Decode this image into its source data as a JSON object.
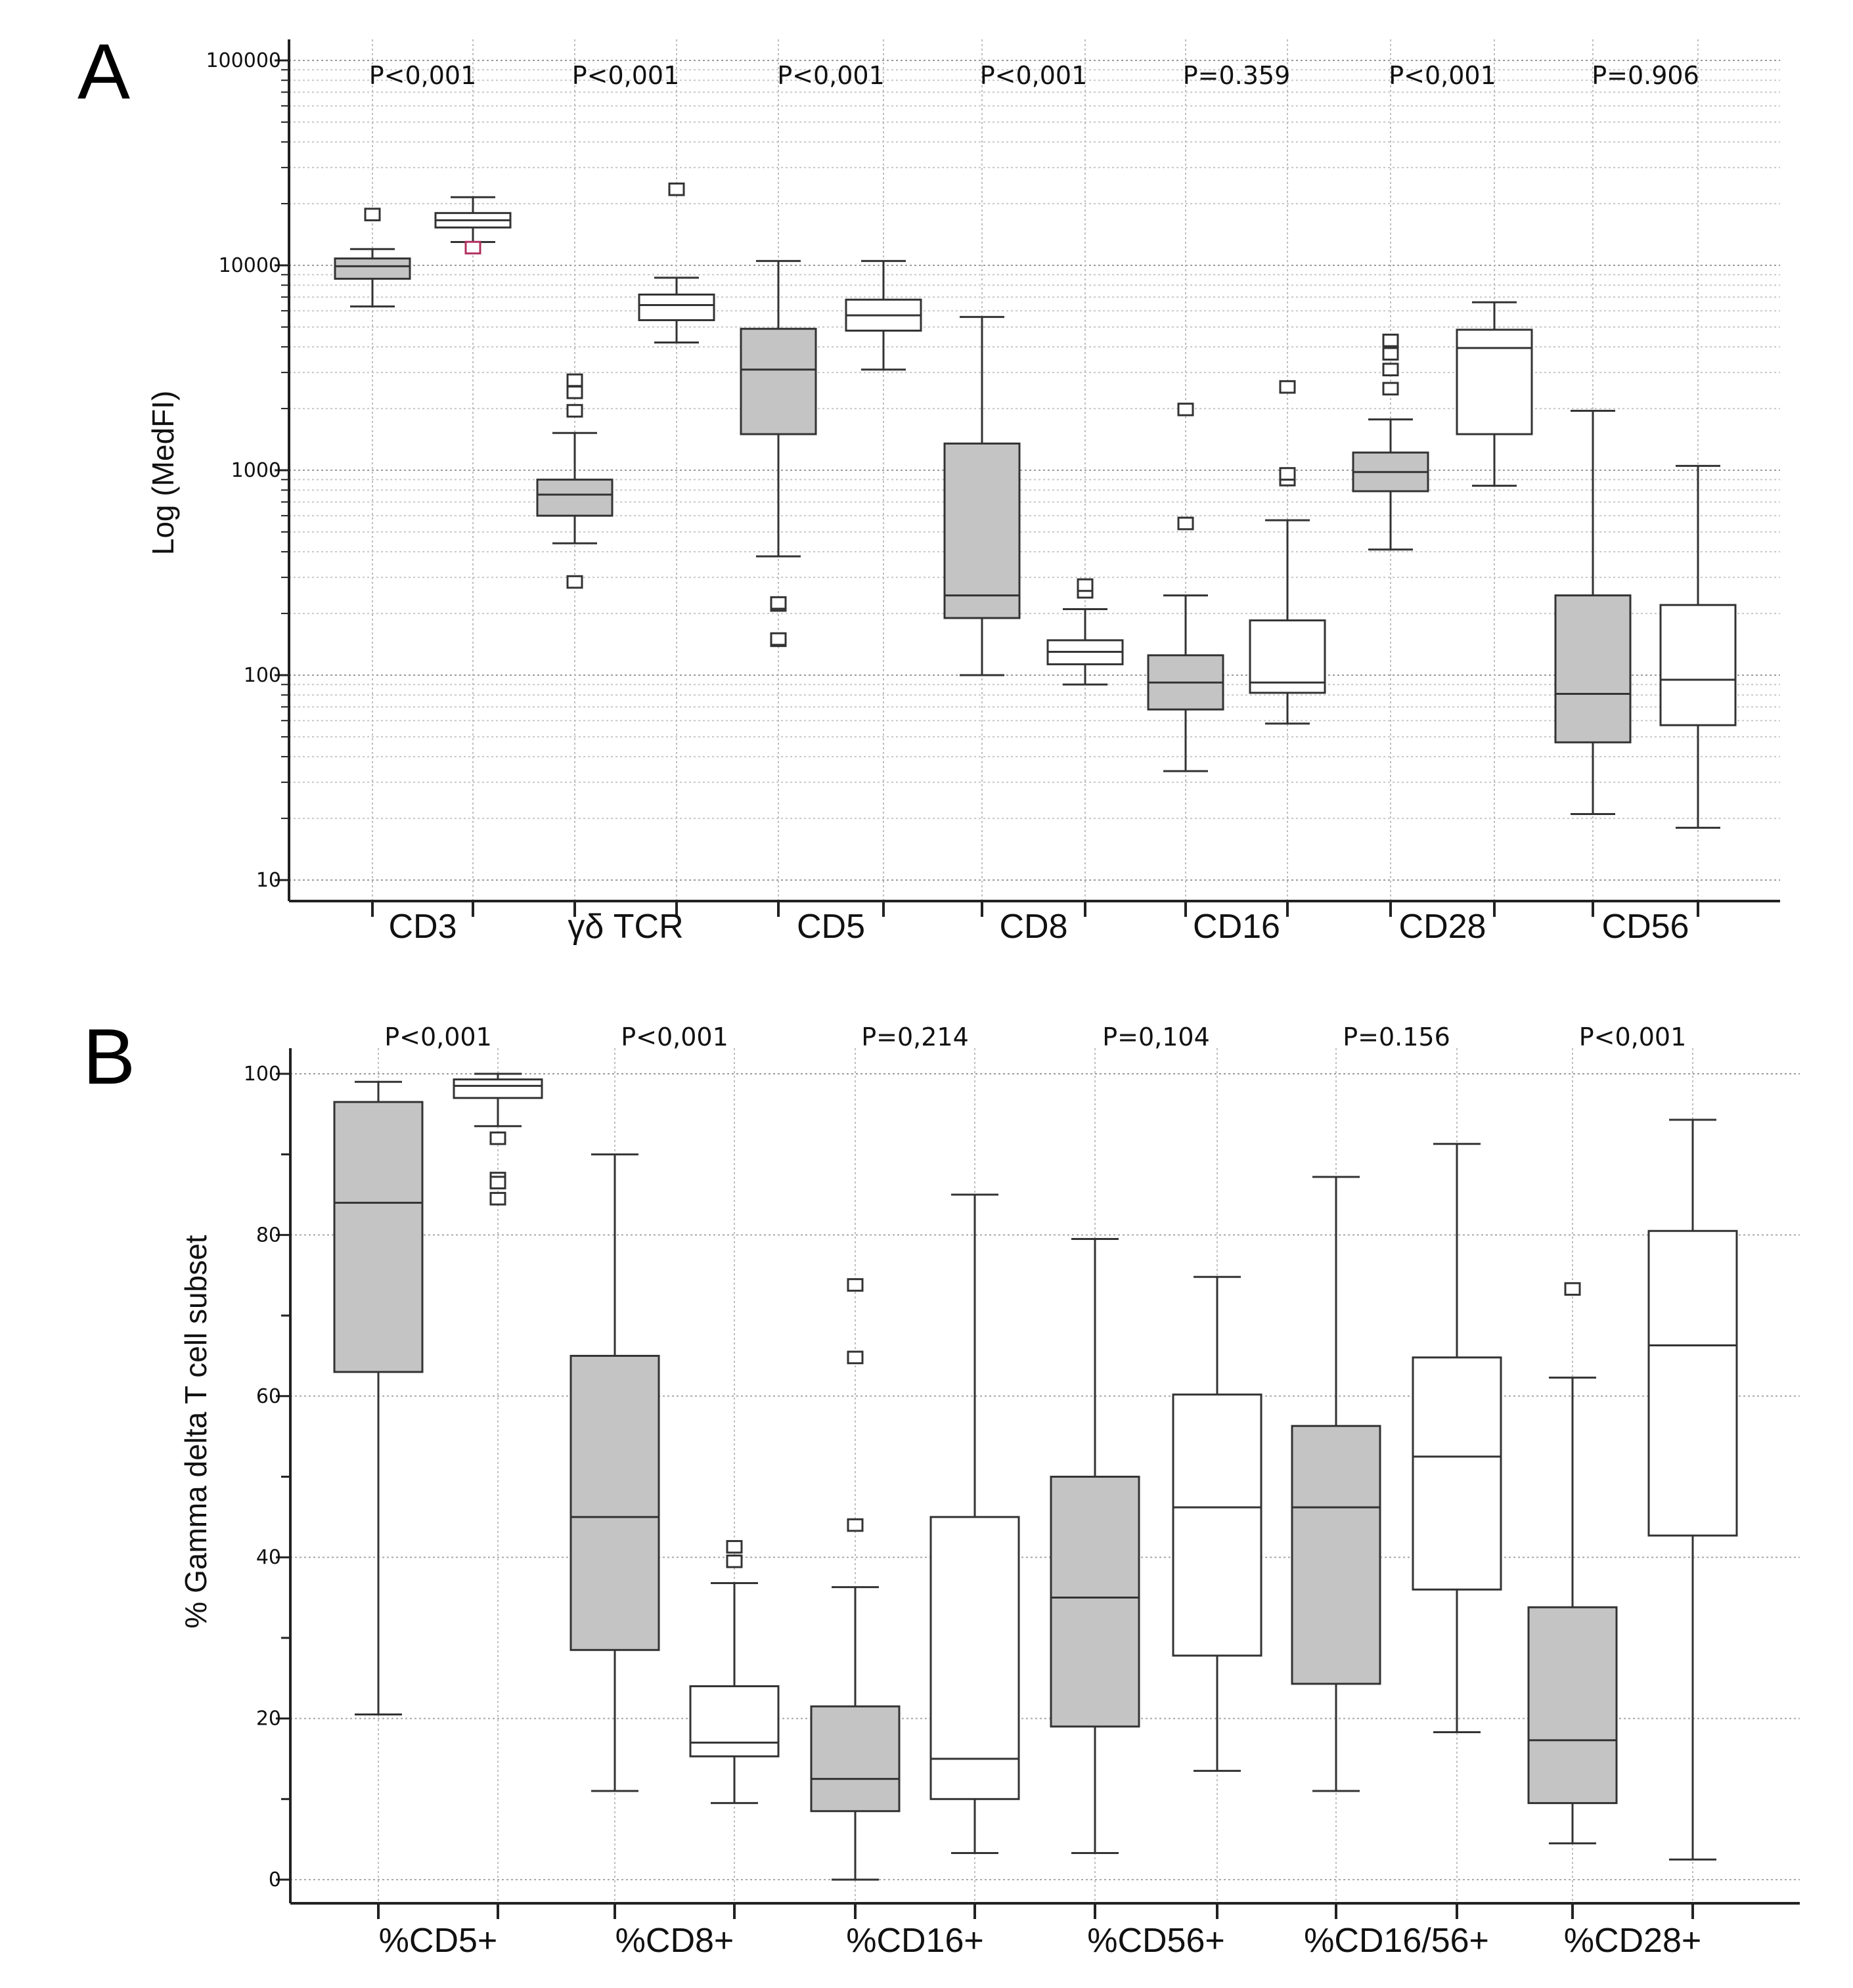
{
  "chart_data": [
    {
      "panel": "A",
      "type": "box",
      "ylabel": "Log (MedFI)",
      "yscale": "log",
      "ylim": [
        10,
        100000
      ],
      "yticks": [
        "100000",
        "10000",
        "1000",
        "100",
        "10"
      ],
      "ytick_values": [
        100000,
        10000,
        1000,
        100,
        10
      ],
      "grid": true,
      "colors": {
        "group1": "#c4c4c4",
        "group2": "#ffffff",
        "outline": "#333333",
        "outlier_highlight": "#b03060"
      },
      "groups": [
        {
          "label": "CD3",
          "pvalue": "P<0,001",
          "boxes": [
            {
              "fill": "grey",
              "whislo": 6300,
              "q1": 8600,
              "med": 9900,
              "q3": 10800,
              "whishi": 12000,
              "fliers": [
                17700
              ]
            },
            {
              "fill": "white",
              "whislo": 13000,
              "q1": 15300,
              "med": 16600,
              "q3": 18000,
              "whishi": 21500,
              "fliers": [
                12200
              ]
            }
          ]
        },
        {
          "label": "γδ TCR",
          "pvalue": "P<0,001",
          "boxes": [
            {
              "fill": "grey",
              "whislo": 440,
              "q1": 600,
              "med": 760,
              "q3": 900,
              "whishi": 1520,
              "fliers": [
                1950,
                2400,
                2750,
                285
              ]
            },
            {
              "fill": "white",
              "whislo": 4200,
              "q1": 5400,
              "med": 6400,
              "q3": 7200,
              "whishi": 8700,
              "fliers": [
                23500
              ]
            }
          ]
        },
        {
          "label": "CD5",
          "pvalue": "P<0,001",
          "boxes": [
            {
              "fill": "grey",
              "whislo": 380,
              "q1": 1500,
              "med": 3100,
              "q3": 4900,
              "whishi": 10500,
              "fliers": [
                220,
                225,
                148,
                150
              ]
            },
            {
              "fill": "white",
              "whislo": 3100,
              "q1": 4800,
              "med": 5700,
              "q3": 6800,
              "whishi": 10500,
              "fliers": []
            }
          ]
        },
        {
          "label": "CD8",
          "pvalue": "P<0,001",
          "boxes": [
            {
              "fill": "grey",
              "whislo": 100,
              "q1": 190,
              "med": 245,
              "q3": 1350,
              "whishi": 5600,
              "fliers": []
            },
            {
              "fill": "white",
              "whislo": 90,
              "q1": 113,
              "med": 130,
              "q3": 148,
              "whishi": 210,
              "fliers": [
                255,
                275
              ]
            }
          ]
        },
        {
          "label": "CD16",
          "pvalue": "P=0.359",
          "boxes": [
            {
              "fill": "grey",
              "whislo": 34,
              "q1": 68,
              "med": 92,
              "q3": 125,
              "whishi": 245,
              "fliers": [
                550,
                1980
              ]
            },
            {
              "fill": "white",
              "whislo": 58,
              "q1": 82,
              "med": 92,
              "q3": 185,
              "whishi": 570,
              "fliers": [
                900,
                960,
                2550
              ]
            }
          ]
        },
        {
          "label": "CD28",
          "pvalue": "P<0,001",
          "boxes": [
            {
              "fill": "grey",
              "whislo": 410,
              "q1": 790,
              "med": 980,
              "q3": 1220,
              "whishi": 1770,
              "fliers": [
                2500,
                3100,
                3700,
                4300
              ]
            },
            {
              "fill": "white",
              "whislo": 840,
              "q1": 1500,
              "med": 3950,
              "q3": 4850,
              "whishi": 6600,
              "fliers": []
            }
          ]
        },
        {
          "label": "CD56",
          "pvalue": "P=0.906",
          "boxes": [
            {
              "fill": "grey",
              "whislo": 21,
              "q1": 47,
              "med": 81,
              "q3": 245,
              "whishi": 1950,
              "fliers": []
            },
            {
              "fill": "white",
              "whislo": 18,
              "q1": 57,
              "med": 95,
              "q3": 220,
              "whishi": 1050,
              "fliers": []
            }
          ]
        }
      ]
    },
    {
      "panel": "B",
      "type": "box",
      "ylabel": "% Gamma delta T cell subset",
      "yscale": "linear",
      "ylim": [
        0,
        100
      ],
      "yticks": [
        "100",
        "80",
        "60",
        "40",
        "20",
        "0"
      ],
      "ytick_values": [
        100,
        80,
        60,
        40,
        20,
        0
      ],
      "grid": true,
      "colors": {
        "group1": "#c4c4c4",
        "group2": "#ffffff",
        "outline": "#333333"
      },
      "groups": [
        {
          "label": "%CD5+",
          "pvalue": "P<0,001",
          "boxes": [
            {
              "fill": "grey",
              "whislo": 20.5,
              "q1": 63,
              "med": 84,
              "q3": 96.5,
              "whishi": 99,
              "fliers": []
            },
            {
              "fill": "white",
              "whislo": 93.5,
              "q1": 97,
              "med": 98.5,
              "q3": 99.3,
              "whishi": 100,
              "fliers": [
                92,
                87,
                86.5,
                84.5
              ]
            }
          ]
        },
        {
          "label": "%CD8+",
          "pvalue": "P<0,001",
          "boxes": [
            {
              "fill": "grey",
              "whislo": 11,
              "q1": 28.5,
              "med": 45,
              "q3": 65,
              "whishi": 90,
              "fliers": []
            },
            {
              "fill": "white",
              "whislo": 9.5,
              "q1": 15.3,
              "med": 17,
              "q3": 24,
              "whishi": 36.8,
              "fliers": [
                39.5,
                41.3
              ]
            }
          ]
        },
        {
          "label": "%CD16+",
          "pvalue": "P=0,214",
          "boxes": [
            {
              "fill": "grey",
              "whislo": 0,
              "q1": 8.5,
              "med": 12.5,
              "q3": 21.5,
              "whishi": 36.3,
              "fliers": [
                44,
                64.8,
                73.8
              ]
            },
            {
              "fill": "white",
              "whislo": 3.3,
              "q1": 10,
              "med": 15,
              "q3": 45,
              "whishi": 85,
              "fliers": []
            }
          ]
        },
        {
          "label": "%CD56+",
          "pvalue": "P=0,104",
          "boxes": [
            {
              "fill": "grey",
              "whislo": 3.3,
              "q1": 19,
              "med": 35,
              "q3": 50,
              "whishi": 79.5,
              "fliers": []
            },
            {
              "fill": "white",
              "whislo": 13.5,
              "q1": 27.8,
              "med": 46.2,
              "q3": 60.2,
              "whishi": 74.8,
              "fliers": []
            }
          ]
        },
        {
          "label": "%CD16/56+",
          "pvalue": "P=0.156",
          "boxes": [
            {
              "fill": "grey",
              "whislo": 11,
              "q1": 24.3,
              "med": 46.2,
              "q3": 56.3,
              "whishi": 87.2,
              "fliers": []
            },
            {
              "fill": "white",
              "whislo": 18.3,
              "q1": 36,
              "med": 52.5,
              "q3": 64.8,
              "whishi": 91.3,
              "fliers": []
            }
          ]
        },
        {
          "label": "%CD28+",
          "pvalue": "P<0,001",
          "boxes": [
            {
              "fill": "grey",
              "whislo": 4.5,
              "q1": 9.5,
              "med": 17.3,
              "q3": 33.8,
              "whishi": 62.3,
              "fliers": [
                73.3
              ]
            },
            {
              "fill": "white",
              "whislo": 2.5,
              "q1": 42.7,
              "med": 66.3,
              "q3": 80.5,
              "whishi": 94.3,
              "fliers": []
            }
          ]
        }
      ]
    }
  ]
}
